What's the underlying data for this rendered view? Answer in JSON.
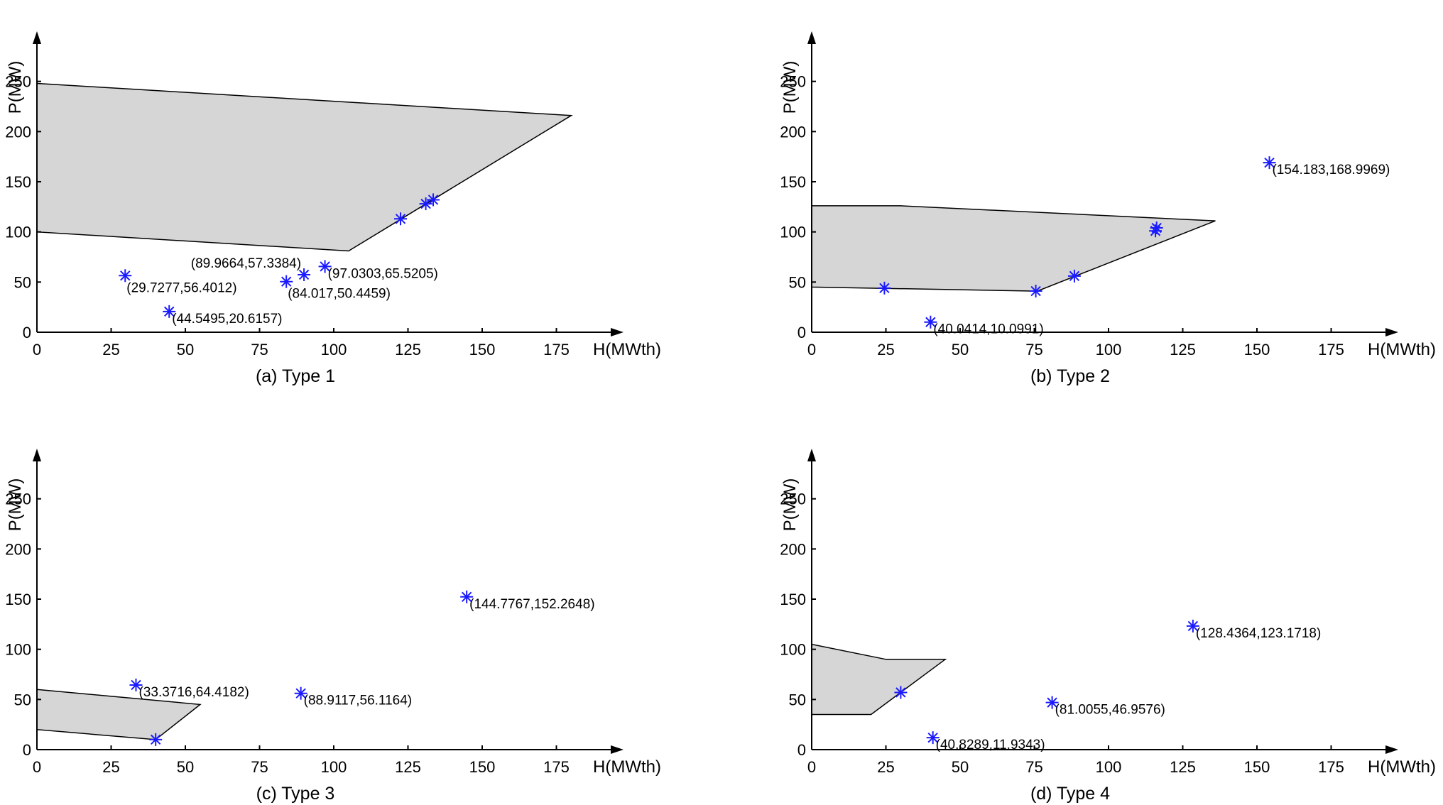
{
  "chart_data": [
    {
      "type": "scatter",
      "title": "(a) Type 1",
      "xlabel": "H(MWth)",
      "ylabel": "P(MW)",
      "xlim": [
        0,
        200
      ],
      "ylim": [
        0,
        300
      ],
      "xticks": [
        0,
        25,
        50,
        75,
        100,
        125,
        150,
        175
      ],
      "yticks": [
        0,
        50,
        100,
        150,
        200,
        250
      ],
      "region": [
        [
          0,
          248
        ],
        [
          180,
          216
        ],
        [
          105,
          81
        ],
        [
          0,
          100
        ]
      ],
      "points": [
        {
          "x": 29.7277,
          "y": 56.4012,
          "label": "(29.7277,56.4012)",
          "labelPos": "below"
        },
        {
          "x": 44.5495,
          "y": 20.6157,
          "label": "(44.5495,20.6157)",
          "labelPos": "right"
        },
        {
          "x": 84.017,
          "y": 50.4459,
          "label": "(84.017,50.4459)",
          "labelPos": "below"
        },
        {
          "x": 89.9664,
          "y": 57.3384,
          "label": "(89.9664,57.3384)",
          "labelPos": "aboveLeft"
        },
        {
          "x": 97.0303,
          "y": 65.5205,
          "label": "(97.0303,65.5205)",
          "labelPos": "right"
        },
        {
          "x": 122.5,
          "y": 113
        },
        {
          "x": 131,
          "y": 128
        },
        {
          "x": 133.5,
          "y": 132
        }
      ]
    },
    {
      "type": "scatter",
      "title": "(b) Type 2",
      "xlabel": "H(MWth)",
      "ylabel": "P(MW)",
      "xlim": [
        0,
        200
      ],
      "ylim": [
        0,
        300
      ],
      "xticks": [
        0,
        25,
        50,
        75,
        100,
        125,
        150,
        175
      ],
      "yticks": [
        0,
        50,
        100,
        150,
        200,
        250
      ],
      "region": [
        [
          0,
          126
        ],
        [
          30,
          126
        ],
        [
          136,
          111
        ],
        [
          76,
          41
        ],
        [
          0,
          45
        ]
      ],
      "points": [
        {
          "x": 154.183,
          "y": 168.9969,
          "label": "(154.183,168.9969)",
          "labelPos": "right"
        },
        {
          "x": 40.0414,
          "y": 10.0991,
          "label": "(40.0414,10.0991)",
          "labelPos": "right"
        },
        {
          "x": 24.5,
          "y": 44
        },
        {
          "x": 75.5,
          "y": 41
        },
        {
          "x": 88.5,
          "y": 56
        },
        {
          "x": 115.8,
          "y": 101
        },
        {
          "x": 116.2,
          "y": 104
        }
      ]
    },
    {
      "type": "scatter",
      "title": "(c) Type 3",
      "xlabel": "H(MWth)",
      "ylabel": "P(MW)",
      "xlim": [
        0,
        200
      ],
      "ylim": [
        0,
        300
      ],
      "xticks": [
        0,
        25,
        50,
        75,
        100,
        125,
        150,
        175
      ],
      "yticks": [
        0,
        50,
        100,
        150,
        200,
        250
      ],
      "region": [
        [
          0,
          60
        ],
        [
          55,
          45
        ],
        [
          40,
          10
        ],
        [
          0,
          20
        ]
      ],
      "points": [
        {
          "x": 144.7767,
          "y": 152.2648,
          "label": "(144.7767,152.2648)",
          "labelPos": "right"
        },
        {
          "x": 33.3716,
          "y": 64.4182,
          "label": "(33.3716,64.4182)",
          "labelPos": "right"
        },
        {
          "x": 88.9117,
          "y": 56.1164,
          "label": "(88.9117,56.1164)",
          "labelPos": "right"
        },
        {
          "x": 40,
          "y": 10
        }
      ]
    },
    {
      "type": "scatter",
      "title": "(d) Type 4",
      "xlabel": "H(MWth)",
      "ylabel": "P(MW)",
      "xlim": [
        0,
        200
      ],
      "ylim": [
        0,
        300
      ],
      "xticks": [
        0,
        25,
        50,
        75,
        100,
        125,
        150,
        175
      ],
      "yticks": [
        0,
        50,
        100,
        150,
        200,
        250
      ],
      "region": [
        [
          0,
          105
        ],
        [
          25,
          90
        ],
        [
          45,
          90
        ],
        [
          20,
          35
        ],
        [
          0,
          35
        ]
      ],
      "points": [
        {
          "x": 128.4364,
          "y": 123.1718,
          "label": "(128.4364,123.1718)",
          "labelPos": "right"
        },
        {
          "x": 81.0055,
          "y": 46.9576,
          "label": "(81.0055,46.9576)",
          "labelPos": "right"
        },
        {
          "x": 40.8289,
          "y": 11.9343,
          "label": "(40.8289,11.9343)",
          "labelPos": "right"
        },
        {
          "x": 30,
          "y": 57
        }
      ]
    }
  ],
  "colors": {
    "marker": "#1a1aff",
    "region_fill": "#d6d6d6",
    "axis": "#000000"
  }
}
